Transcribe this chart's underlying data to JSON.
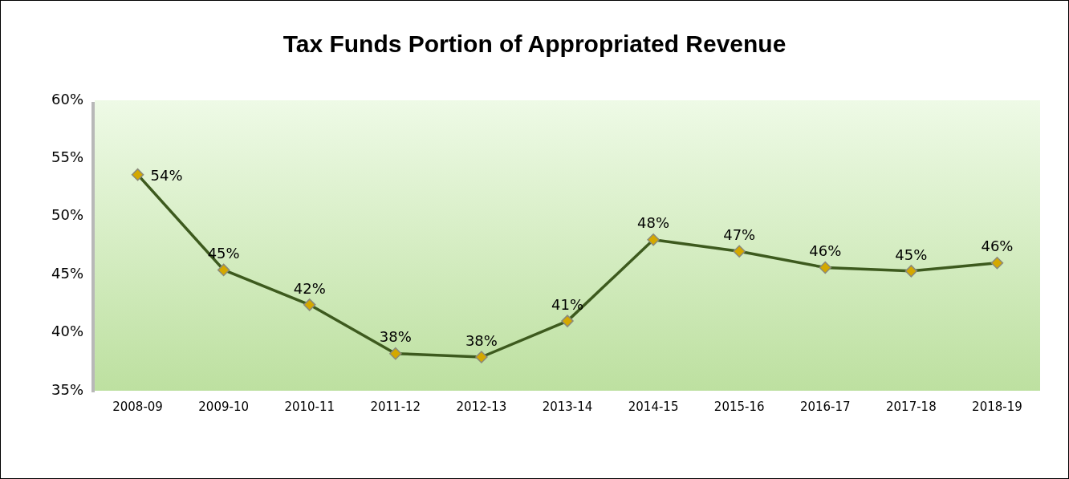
{
  "chart_data": {
    "type": "line",
    "title": "Tax Funds Portion of Appropriated Revenue",
    "categories": [
      "2008-09",
      "2009-10",
      "2010-11",
      "2011-12",
      "2012-13",
      "2013-14",
      "2014-15",
      "2015-16",
      "2016-17",
      "2017-18",
      "2018-19"
    ],
    "series": [
      {
        "color": "#3d5a1e",
        "values": [
          53.6,
          45.4,
          42.4,
          38.2,
          37.9,
          41.0,
          48.0,
          47.0,
          45.6,
          45.3,
          46.0
        ],
        "value_labels": [
          "54%",
          "45%",
          "42%",
          "38%",
          "38%",
          "41%",
          "48%",
          "47%",
          "46%",
          "45%",
          "46%"
        ]
      }
    ],
    "ylim": [
      35,
      60
    ],
    "yticks": [
      {
        "value": 35,
        "label": "35%"
      },
      {
        "value": 40,
        "label": "40%"
      },
      {
        "value": 45,
        "label": "45%"
      },
      {
        "value": 50,
        "label": "50%"
      },
      {
        "value": 55,
        "label": "55%"
      },
      {
        "value": 60,
        "label": "60%"
      }
    ],
    "grid": false,
    "legend": false,
    "marker": "diamond",
    "line_style": "solid"
  }
}
